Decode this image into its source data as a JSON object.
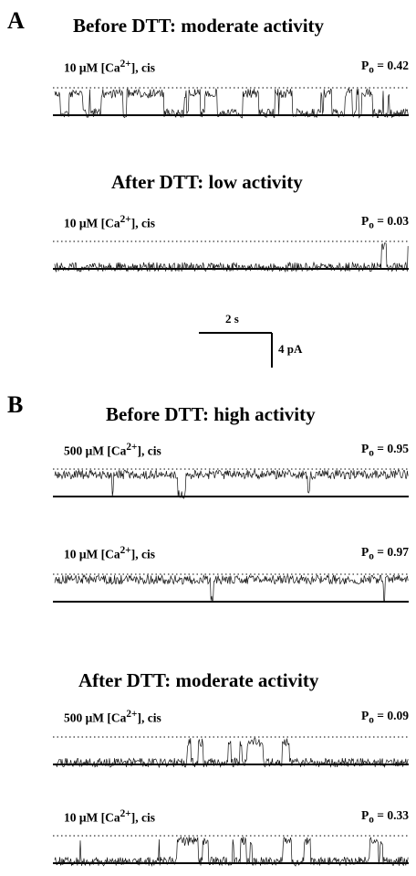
{
  "panels": [
    {
      "letter": "A",
      "sections": [
        {
          "heading": "Before DTT: moderate activity",
          "traces": [
            {
              "ca_value": "10 μM",
              "ca_suffix": ", cis",
              "po": "0.42",
              "po_value": 0.42
            }
          ]
        },
        {
          "heading": "After DTT: low activity",
          "traces": [
            {
              "ca_value": "10 μM",
              "ca_suffix": ", cis",
              "po": "0.03",
              "po_value": 0.03
            }
          ]
        }
      ],
      "scale_bar": {
        "time": "2 s",
        "current": "4 pA"
      }
    },
    {
      "letter": "B",
      "sections": [
        {
          "heading": "Before DTT: high activity",
          "traces": [
            {
              "ca_value": "500 μM",
              "ca_suffix": ", cis",
              "po": "0.95",
              "po_value": 0.95
            },
            {
              "ca_value": "10 μM",
              "ca_suffix": ", cis",
              "po": "0.97",
              "po_value": 0.97
            }
          ]
        },
        {
          "heading": "After DTT: moderate activity",
          "traces": [
            {
              "ca_value": "500 μM",
              "ca_suffix": ", cis",
              "po": "0.09",
              "po_value": 0.09
            },
            {
              "ca_value": "10 μM",
              "ca_suffix": ", cis",
              "po": "0.33",
              "po_value": 0.33
            }
          ]
        }
      ]
    }
  ],
  "labels": {
    "ca_prefix": "[Ca",
    "ca_sup": "2+",
    "ca_close": "]",
    "po_symbol": "P",
    "po_sub": "o",
    "po_eq": " = "
  }
}
